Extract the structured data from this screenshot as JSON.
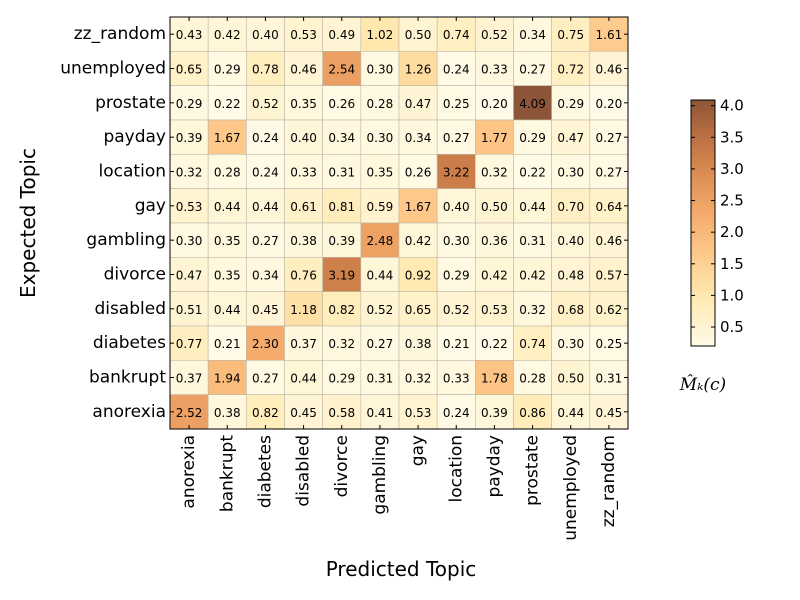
{
  "chart_data": {
    "type": "heatmap",
    "xlabel": "Predicted Topic",
    "ylabel": "Expected Topic",
    "colorbar_label": "M̂ₖ(c)",
    "colorbar_range": [
      0.2,
      4.09
    ],
    "colorbar_ticks": [
      "0.5",
      "1.0",
      "1.5",
      "2.0",
      "2.5",
      "3.0",
      "3.5",
      "4.0"
    ],
    "x_categories": [
      "anorexia",
      "bankrupt",
      "diabetes",
      "disabled",
      "divorce",
      "gambling",
      "gay",
      "location",
      "payday",
      "prostate",
      "unemployed",
      "zz_random"
    ],
    "y_categories": [
      "zz_random",
      "unemployed",
      "prostate",
      "payday",
      "location",
      "gay",
      "gambling",
      "divorce",
      "disabled",
      "diabetes",
      "bankrupt",
      "anorexia"
    ],
    "values": [
      [
        "0.43",
        "0.42",
        "0.40",
        "0.53",
        "0.49",
        "1.02",
        "0.50",
        "0.74",
        "0.52",
        "0.34",
        "0.75",
        "1.61"
      ],
      [
        "0.65",
        "0.29",
        "0.78",
        "0.46",
        "2.54",
        "0.30",
        "1.26",
        "0.24",
        "0.33",
        "0.27",
        "0.72",
        "0.46"
      ],
      [
        "0.29",
        "0.22",
        "0.52",
        "0.35",
        "0.26",
        "0.28",
        "0.47",
        "0.25",
        "0.20",
        "4.09",
        "0.29",
        "0.20"
      ],
      [
        "0.39",
        "1.67",
        "0.24",
        "0.40",
        "0.34",
        "0.30",
        "0.34",
        "0.27",
        "1.77",
        "0.29",
        "0.47",
        "0.27"
      ],
      [
        "0.32",
        "0.28",
        "0.24",
        "0.33",
        "0.31",
        "0.35",
        "0.26",
        "3.22",
        "0.32",
        "0.22",
        "0.30",
        "0.27"
      ],
      [
        "0.53",
        "0.44",
        "0.44",
        "0.61",
        "0.81",
        "0.59",
        "1.67",
        "0.40",
        "0.50",
        "0.44",
        "0.70",
        "0.64"
      ],
      [
        "0.30",
        "0.35",
        "0.27",
        "0.38",
        "0.39",
        "2.48",
        "0.42",
        "0.30",
        "0.36",
        "0.31",
        "0.40",
        "0.46"
      ],
      [
        "0.47",
        "0.35",
        "0.34",
        "0.76",
        "3.19",
        "0.44",
        "0.92",
        "0.29",
        "0.42",
        "0.42",
        "0.48",
        "0.57"
      ],
      [
        "0.51",
        "0.44",
        "0.45",
        "1.18",
        "0.82",
        "0.52",
        "0.65",
        "0.52",
        "0.53",
        "0.32",
        "0.68",
        "0.62"
      ],
      [
        "0.77",
        "0.21",
        "2.30",
        "0.37",
        "0.32",
        "0.27",
        "0.38",
        "0.21",
        "0.22",
        "0.74",
        "0.30",
        "0.25"
      ],
      [
        "0.37",
        "1.94",
        "0.27",
        "0.44",
        "0.29",
        "0.31",
        "0.32",
        "0.33",
        "1.78",
        "0.28",
        "0.50",
        "0.31"
      ],
      [
        "2.52",
        "0.38",
        "0.82",
        "0.45",
        "0.58",
        "0.41",
        "0.53",
        "0.24",
        "0.39",
        "0.86",
        "0.44",
        "0.45"
      ]
    ]
  }
}
